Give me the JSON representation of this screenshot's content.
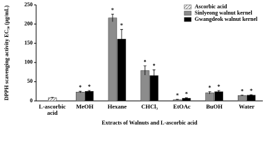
{
  "chart_data": {
    "type": "bar",
    "y_label": "DPPH scavenging activity EC₅₀ (μg/mL)",
    "x_label": "Extracts of Walnuts and L-ascorbic acid",
    "categories": [
      "L-ascorbic acid",
      "MeOH",
      "Hexane",
      "CHCl₃",
      "EtOAc",
      "BuOH",
      "Water"
    ],
    "series": [
      {
        "name": "Ascorbic acid",
        "color": "#555555",
        "pattern": "hatch",
        "values": [
          8,
          null,
          null,
          null,
          null,
          null,
          null
        ],
        "errors": [
          1,
          null,
          null,
          null,
          null,
          null,
          null
        ]
      },
      {
        "name": "Sinlyeong walnut kernel",
        "color": "#8c8c8c",
        "values": [
          null,
          23,
          216,
          79,
          3,
          21,
          14
        ],
        "errors": [
          null,
          2,
          10,
          12,
          1,
          3,
          1
        ]
      },
      {
        "name": "Gwangdeok walnut kernel",
        "color": "#000000",
        "values": [
          null,
          25,
          161,
          66,
          7,
          24,
          15
        ],
        "errors": [
          null,
          2,
          25,
          15,
          1,
          3,
          1
        ]
      }
    ],
    "significance_mark": "*",
    "ylim": [
      0,
      250
    ],
    "yticks": [
      0,
      50,
      100,
      150,
      200,
      250
    ],
    "legend": "upper-right"
  }
}
